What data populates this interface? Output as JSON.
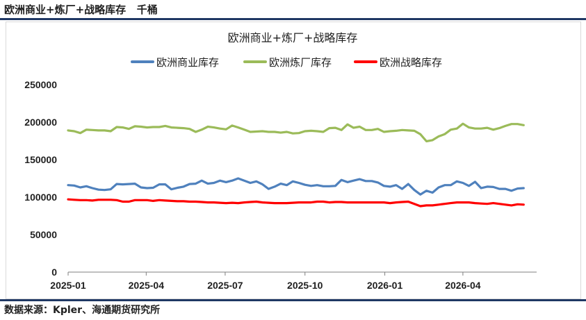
{
  "header": {
    "title": "欧洲商业+炼厂+战略库存   千桶"
  },
  "footer": {
    "source": "数据来源：Kpler、海通期货研究所"
  },
  "colors": {
    "rule": "#1f3864",
    "commercial": "#4f81bd",
    "refinery": "#9bbb59",
    "strategic": "#ff0000"
  },
  "chart_data": {
    "type": "line",
    "title": "欧洲商业+炼厂+战略库存",
    "ylim": [
      0,
      250000
    ],
    "yticks": [
      0,
      50000,
      100000,
      150000,
      200000,
      250000
    ],
    "xticks": [
      "2025-01",
      "2025-04",
      "2025-07",
      "2025-10",
      "2026-01",
      "2026-04"
    ],
    "x_start": "2025-01-01",
    "x_step_days": 7,
    "legend": "top",
    "series": [
      {
        "name": "欧洲商业库存",
        "color": "#4f81bd",
        "values": [
          116000,
          115500,
          113000,
          114500,
          112000,
          110000,
          109500,
          110500,
          117500,
          117000,
          117500,
          118000,
          113000,
          112000,
          112500,
          117000,
          117000,
          110500,
          112500,
          114000,
          117500,
          118000,
          122000,
          118000,
          119000,
          122000,
          120000,
          122000,
          125000,
          122000,
          119000,
          121000,
          117000,
          111000,
          114000,
          118000,
          116000,
          121000,
          119000,
          116500,
          115000,
          116000,
          114500,
          114500,
          115000,
          123000,
          120000,
          122000,
          124000,
          121500,
          121500,
          119500,
          115000,
          114000,
          116000,
          111000,
          117500,
          109500,
          103500,
          108500,
          106000,
          113000,
          116000,
          116000,
          121000,
          119000,
          115000,
          120500,
          112000,
          114000,
          113500,
          111000,
          111000,
          108500,
          111500,
          112000
        ]
      },
      {
        "name": "欧洲炼厂库存",
        "color": "#9bbb59",
        "values": [
          189000,
          188000,
          185500,
          190000,
          189500,
          189000,
          189000,
          188000,
          193500,
          193000,
          191000,
          194500,
          194000,
          193000,
          193500,
          193500,
          195000,
          193000,
          192500,
          192000,
          191000,
          187000,
          190000,
          194000,
          193000,
          191500,
          190500,
          195500,
          193000,
          190000,
          187000,
          187500,
          188000,
          187000,
          187000,
          186000,
          187000,
          185000,
          185500,
          188000,
          188500,
          188000,
          187000,
          192000,
          192500,
          189500,
          197000,
          192500,
          194000,
          189500,
          189500,
          191000,
          187000,
          188000,
          188500,
          189500,
          189000,
          188500,
          184000,
          174500,
          176000,
          181000,
          184000,
          190000,
          191500,
          198000,
          193000,
          191500,
          191500,
          192500,
          190000,
          192000,
          195000,
          197500,
          197500,
          196000
        ]
      },
      {
        "name": "欧洲战略库存",
        "color": "#ff0000",
        "values": [
          97000,
          96500,
          96000,
          96000,
          95500,
          96500,
          96500,
          96500,
          96000,
          94000,
          94000,
          96000,
          96000,
          96000,
          95000,
          96000,
          95500,
          95000,
          94500,
          94500,
          94000,
          94000,
          93500,
          93000,
          93000,
          92500,
          92000,
          92500,
          92000,
          93000,
          93500,
          94000,
          93000,
          92500,
          92000,
          92000,
          92000,
          92500,
          93000,
          93000,
          93000,
          94000,
          94000,
          93000,
          93500,
          93500,
          93000,
          93000,
          93000,
          93000,
          93000,
          93000,
          93000,
          92000,
          93000,
          93500,
          94000,
          91000,
          88000,
          89000,
          89000,
          90000,
          91000,
          92000,
          93000,
          93000,
          93000,
          92000,
          91500,
          91000,
          92000,
          91000,
          90000,
          89000,
          90500,
          90000
        ]
      }
    ]
  }
}
